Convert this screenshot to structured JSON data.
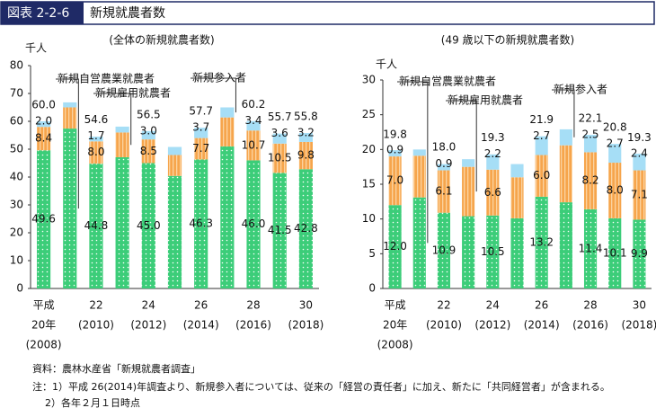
{
  "header": {
    "code": "図表 2-2-6",
    "title": "新規就農者数"
  },
  "chart_data": [
    {
      "type": "stacked_bar",
      "title": "(全体の新規就農者数)",
      "y_unit": "千人",
      "categories": [
        [
          "平成",
          "20年",
          "(2008)"
        ],
        null,
        [
          "22",
          "(2010)"
        ],
        null,
        [
          "24",
          "(2012)"
        ],
        null,
        [
          "26",
          "(2014)"
        ],
        null,
        [
          "28",
          "(2016)"
        ],
        null,
        [
          "30",
          "(2018)"
        ]
      ],
      "series": [
        {
          "name": "新規自営農業就農者",
          "color": "#3ccd79",
          "values": [
            49.6,
            57.4,
            44.8,
            47.1,
            45.0,
            40.4,
            46.3,
            51.0,
            46.0,
            41.5,
            42.8
          ],
          "value_labels": [
            "49.6",
            null,
            "44.8",
            null,
            "45.0",
            null,
            "46.3",
            null,
            "46.0",
            "41.5",
            "42.8"
          ]
        },
        {
          "name": "新規雇用就農者",
          "color": "#f6a54c",
          "values": [
            8.4,
            7.6,
            8.0,
            8.9,
            8.5,
            7.5,
            7.7,
            10.4,
            10.7,
            10.5,
            9.8
          ],
          "value_labels": [
            "8.4",
            null,
            "8.0",
            null,
            "8.5",
            null,
            "7.7",
            null,
            "10.7",
            "10.5",
            "9.8"
          ]
        },
        {
          "name": "新規参入者",
          "color": "#a6def6",
          "values": [
            2.0,
            1.8,
            1.7,
            2.1,
            3.0,
            2.9,
            3.7,
            3.6,
            3.4,
            3.6,
            3.2
          ],
          "value_labels": [
            "2.0",
            null,
            "1.7",
            null,
            "3.0",
            null,
            "3.7",
            null,
            "3.4",
            "3.6",
            "3.2"
          ]
        }
      ],
      "totals": [
        60,
        null,
        54.6,
        null,
        56.5,
        null,
        57.7,
        null,
        60.2,
        55.7,
        55.8
      ],
      "total_labels": [
        "60.0",
        null,
        "54.6",
        null,
        "56.5",
        null,
        "57.7",
        null,
        "60.2",
        "55.7",
        "55.8"
      ],
      "ylim": [
        0,
        80
      ],
      "yticks": [
        0,
        10,
        20,
        30,
        40,
        50,
        60,
        70,
        80
      ]
    },
    {
      "type": "stacked_bar",
      "title": "(49 歳以下の新規就農者数)",
      "y_unit": "千人",
      "categories": [
        [
          "平成",
          "20年",
          "(2008)"
        ],
        null,
        [
          "22",
          "(2010)"
        ],
        null,
        [
          "24",
          "(2012)"
        ],
        null,
        [
          "26",
          "(2014)"
        ],
        null,
        [
          "28",
          "(2016)"
        ],
        null,
        [
          "30",
          "(2018)"
        ]
      ],
      "series": [
        {
          "name": "新規自営農業就農者",
          "color": "#3ccd79",
          "values": [
            12.0,
            13.1,
            10.9,
            10.4,
            10.5,
            10.1,
            13.2,
            12.4,
            11.4,
            10.1,
            9.9
          ],
          "value_labels": [
            "12.0",
            null,
            "10.9",
            null,
            "10.5",
            null,
            "13.2",
            null,
            "11.4",
            "10.1",
            "9.9"
          ]
        },
        {
          "name": "新規雇用就農者",
          "color": "#f6a54c",
          "values": [
            7.0,
            6.0,
            6.1,
            7.1,
            6.6,
            5.9,
            6.0,
            8.2,
            8.2,
            8.0,
            7.1
          ],
          "value_labels": [
            "7.0",
            null,
            "6.1",
            null,
            "6.6",
            null,
            "6.0",
            null,
            "8.2",
            "8.0",
            "7.1"
          ]
        },
        {
          "name": "新規参入者",
          "color": "#a6def6",
          "values": [
            0.9,
            0.9,
            0.9,
            1.1,
            2.2,
            1.9,
            2.7,
            2.3,
            2.5,
            2.7,
            2.4
          ],
          "value_labels": [
            "0.9",
            null,
            "0.9",
            null,
            "2.2",
            null,
            "2.7",
            null,
            "2.5",
            "2.7",
            "2.4"
          ]
        }
      ],
      "totals": [
        19.8,
        null,
        18,
        null,
        19.3,
        null,
        21.9,
        null,
        22.1,
        20.8,
        19.3
      ],
      "total_labels": [
        "19.8",
        null,
        "18.0",
        null,
        "19.3",
        null,
        "21.9",
        null,
        "22.1",
        "20.8",
        "19.3"
      ],
      "ylim": [
        0,
        30
      ],
      "yticks": [
        0,
        5,
        10,
        15,
        20,
        25,
        30
      ]
    }
  ],
  "notes": {
    "source": "資料：農林水産省「新規就農者調査」",
    "note1": "注：1）平成 26(2014)年調査より、新規参入者については、従来の「経営の責任者」に加え、新たに「共同経営者」が含まれる。",
    "note2": "2）各年２月１日時点"
  }
}
